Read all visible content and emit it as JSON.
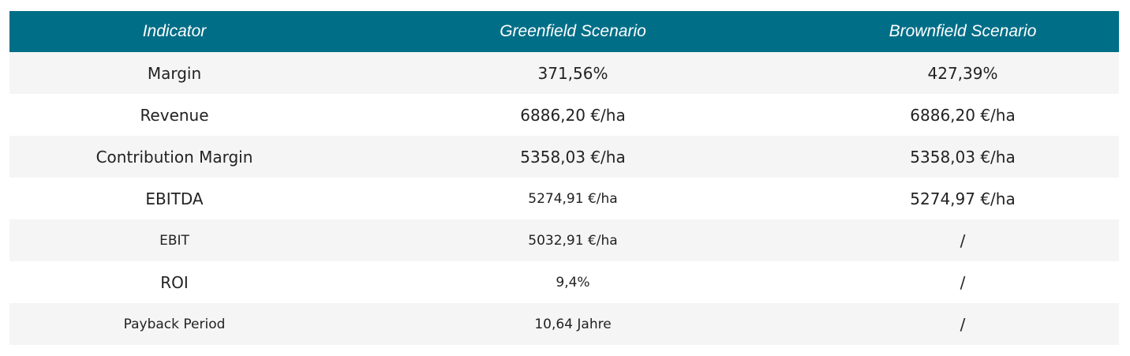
{
  "table": {
    "header": [
      "Indicator",
      "Greenfield Scenario",
      "Brownfield Scenario"
    ],
    "rows": [
      [
        "Margin",
        "371,56%",
        "427,39%"
      ],
      [
        "Revenue",
        "6886,20 €/ha",
        "6886,20 €/ha"
      ],
      [
        "Contribution Margin",
        "5358,03 €/ha",
        "5358,03 €/ha"
      ],
      [
        "EBITDA",
        "5274,91 €/ha",
        "5274,97 €/ha"
      ],
      [
        "EBIT",
        "5032,91 €/ha",
        "/"
      ],
      [
        "ROI",
        "9,4%",
        "/"
      ],
      [
        "Payback Period",
        "10,64 Jahre",
        "/"
      ]
    ]
  }
}
